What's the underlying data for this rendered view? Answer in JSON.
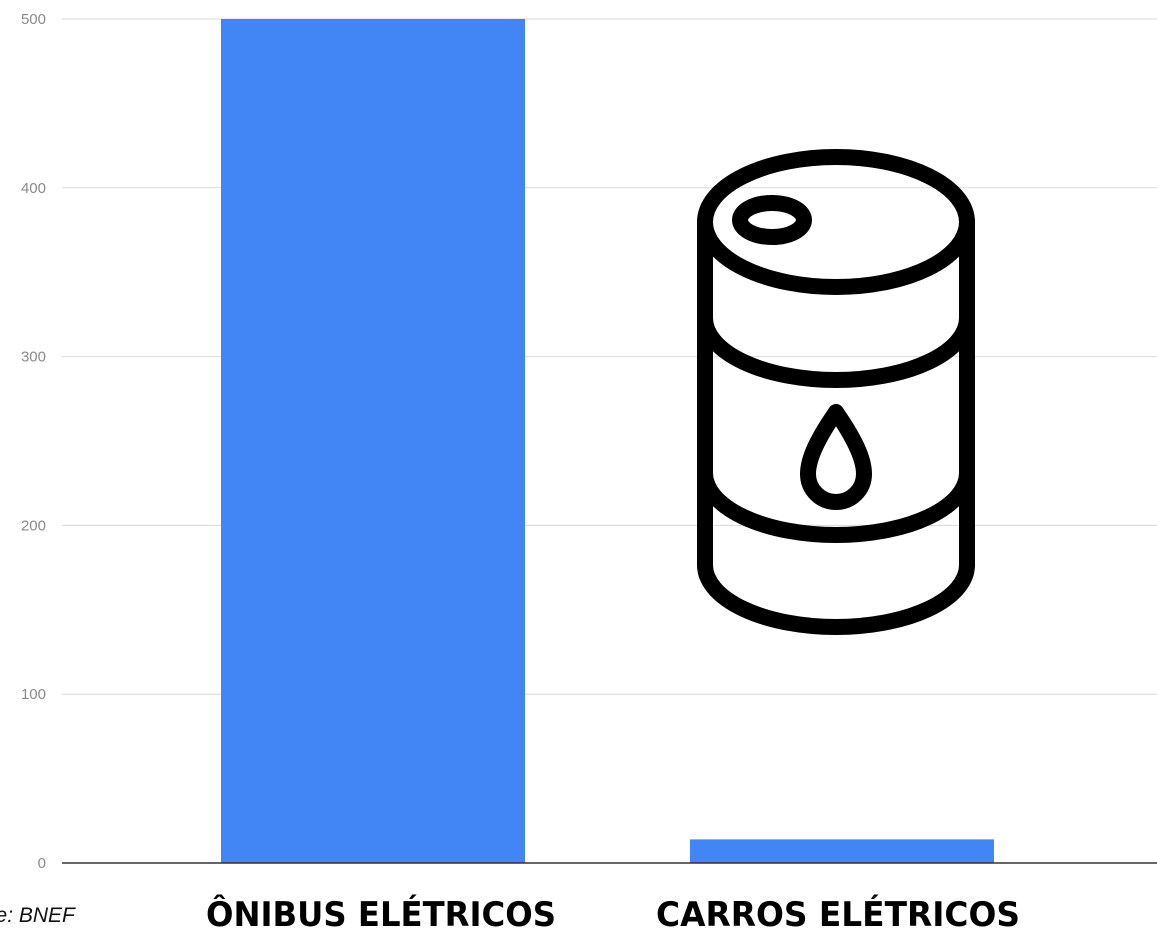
{
  "chart_data": {
    "type": "bar",
    "categories": [
      "ÔNIBUS ELÉTRICOS",
      "CARROS ELÉTRICOS"
    ],
    "values": [
      500,
      14
    ],
    "ylim": [
      0,
      500
    ],
    "yticks": [
      0,
      100,
      200,
      300,
      400,
      500
    ],
    "grid": true,
    "legend": "none",
    "source": "nte: BNEF",
    "bar_color": "#4285f4",
    "gridline_color": "#d9d9d9",
    "axis_color": "#333333"
  },
  "icons": {
    "oil_barrel": "oil-barrel-icon"
  }
}
